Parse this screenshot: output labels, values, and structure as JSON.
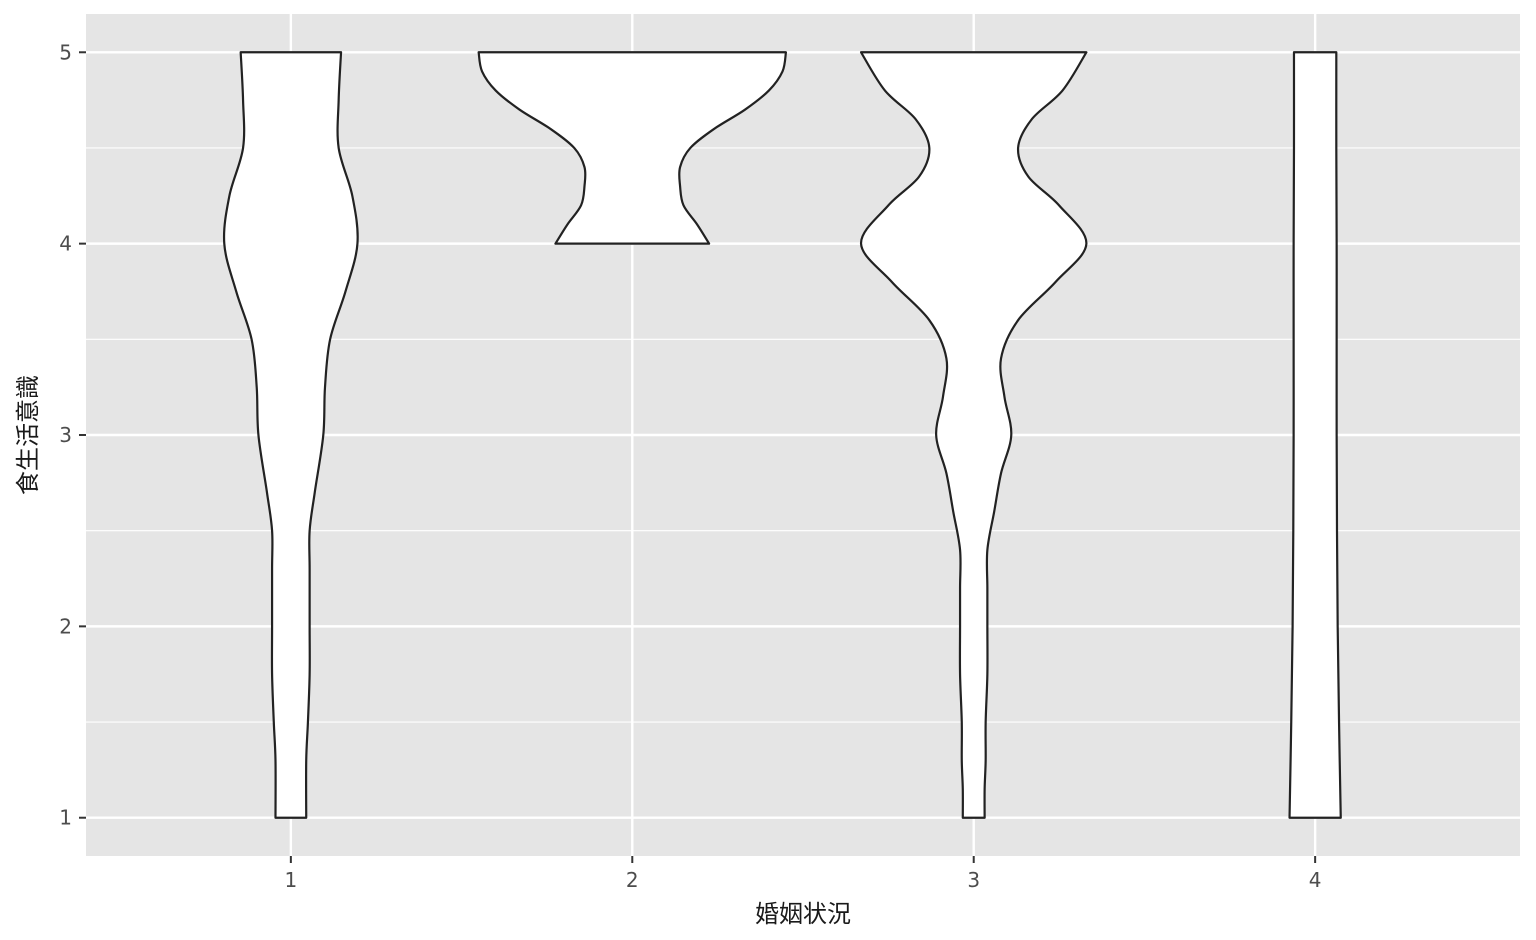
{
  "chart_data": {
    "type": "violin",
    "title": "",
    "xlabel": "婚姻状況",
    "ylabel": "食生活意識",
    "categories": [
      "1",
      "2",
      "3",
      "4"
    ],
    "xlim": [
      0.4,
      4.6
    ],
    "ylim": [
      0.8,
      5.2
    ],
    "yticks": [
      1,
      2,
      3,
      4,
      5
    ],
    "grid": true,
    "legend": "none",
    "colors": {
      "panel": "#e5e5e5",
      "grid": "#ffffff",
      "violin_fill": "#ffffff",
      "violin_stroke": "#222222",
      "tick": "#333333"
    },
    "violins": [
      {
        "category": "1",
        "y_range": [
          1,
          5
        ],
        "density": [
          [
            1.0,
            0.045
          ],
          [
            1.3,
            0.045
          ],
          [
            1.5,
            0.05
          ],
          [
            1.75,
            0.055
          ],
          [
            2.0,
            0.055
          ],
          [
            2.3,
            0.055
          ],
          [
            2.5,
            0.055
          ],
          [
            2.7,
            0.07
          ],
          [
            3.0,
            0.095
          ],
          [
            3.25,
            0.1
          ],
          [
            3.5,
            0.115
          ],
          [
            3.75,
            0.16
          ],
          [
            4.0,
            0.195
          ],
          [
            4.25,
            0.18
          ],
          [
            4.5,
            0.14
          ],
          [
            4.75,
            0.14
          ],
          [
            5.0,
            0.147
          ]
        ]
      },
      {
        "category": "2",
        "y_range": [
          4,
          5
        ],
        "density": [
          [
            4.0,
            0.225
          ],
          [
            4.1,
            0.19
          ],
          [
            4.2,
            0.15
          ],
          [
            4.3,
            0.14
          ],
          [
            4.4,
            0.14
          ],
          [
            4.5,
            0.17
          ],
          [
            4.6,
            0.24
          ],
          [
            4.7,
            0.33
          ],
          [
            4.8,
            0.4
          ],
          [
            4.9,
            0.44
          ],
          [
            5.0,
            0.45
          ]
        ]
      },
      {
        "category": "3",
        "y_range": [
          1,
          5
        ],
        "density": [
          [
            1.0,
            0.032
          ],
          [
            1.15,
            0.032
          ],
          [
            1.3,
            0.035
          ],
          [
            1.5,
            0.035
          ],
          [
            1.75,
            0.04
          ],
          [
            2.0,
            0.04
          ],
          [
            2.2,
            0.04
          ],
          [
            2.4,
            0.04
          ],
          [
            2.6,
            0.06
          ],
          [
            2.8,
            0.08
          ],
          [
            3.0,
            0.11
          ],
          [
            3.2,
            0.09
          ],
          [
            3.4,
            0.08
          ],
          [
            3.6,
            0.13
          ],
          [
            3.8,
            0.24
          ],
          [
            4.0,
            0.33
          ],
          [
            4.2,
            0.25
          ],
          [
            4.35,
            0.16
          ],
          [
            4.5,
            0.13
          ],
          [
            4.65,
            0.17
          ],
          [
            4.8,
            0.26
          ],
          [
            5.0,
            0.33
          ]
        ]
      },
      {
        "category": "4",
        "y_range": [
          1,
          5
        ],
        "density": [
          [
            1.0,
            0.075
          ],
          [
            1.5,
            0.07
          ],
          [
            2.0,
            0.066
          ],
          [
            2.5,
            0.064
          ],
          [
            3.0,
            0.063
          ],
          [
            3.5,
            0.063
          ],
          [
            4.0,
            0.063
          ],
          [
            4.5,
            0.062
          ],
          [
            5.0,
            0.062
          ]
        ]
      }
    ]
  }
}
